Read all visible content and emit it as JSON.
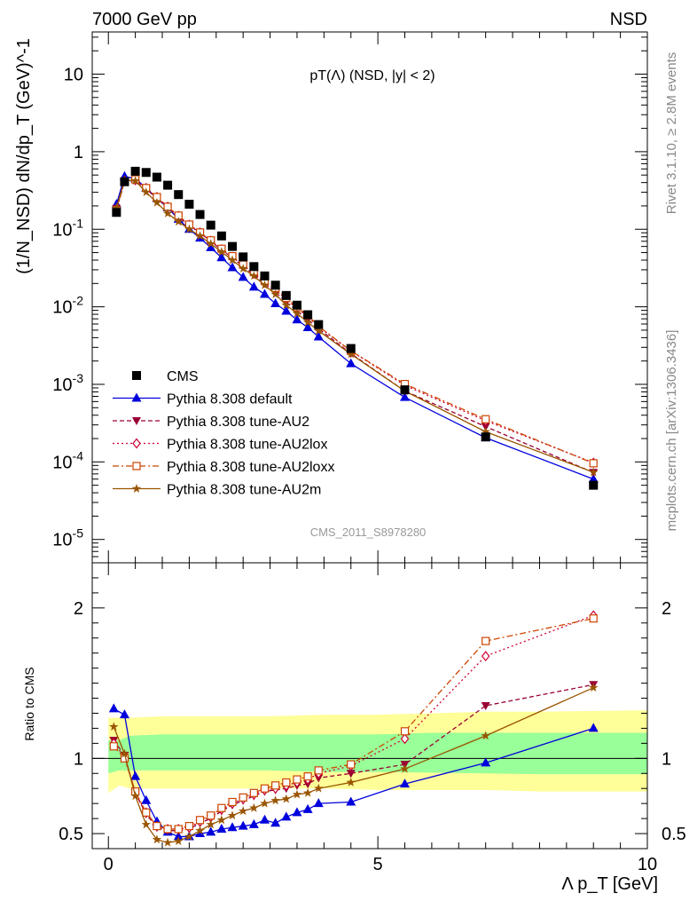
{
  "header": {
    "left": "7000 GeV pp",
    "right": "NSD"
  },
  "side": {
    "rivet": "Rivet 3.1.10, ≥ 2.8M events",
    "mcplots": "mcplots.cern.ch [arXiv:1306.3436]"
  },
  "watermark": "CMS_2011_S8978280",
  "colors": {
    "cms": "#000000",
    "default": "#0000dd",
    "au2": "#990033",
    "au2lox": "#cc0033",
    "au2loxx": "#cc4400",
    "au2m": "#995500",
    "band_inner": "#99ff99",
    "band_outer": "#ffff99"
  },
  "chart_data": [
    {
      "type": "scatter",
      "title": "pT(Λ) (NSD, |y| < 2)",
      "ylabel": "(1/N_NSD) dN/dp_T (GeV)^-1",
      "yscale": "log",
      "xlim": [
        -0.3,
        10
      ],
      "ylim": [
        5e-06,
        35
      ],
      "ytick_labels": [
        "10^-5",
        "10^-4",
        "10^-3",
        "10^-2",
        "10^-1",
        "1",
        "10"
      ],
      "legend": [
        "CMS",
        "Pythia 8.308 default",
        "Pythia 8.308 tune-AU2",
        "Pythia 8.308 tune-AU2lox",
        "Pythia 8.308 tune-AU2loxx",
        "Pythia 8.308 tune-AU2m"
      ],
      "legend_position": "bottom-left",
      "x": [
        0.15,
        0.3,
        0.5,
        0.7,
        0.9,
        1.1,
        1.3,
        1.5,
        1.7,
        1.9,
        2.1,
        2.3,
        2.5,
        2.7,
        2.9,
        3.1,
        3.3,
        3.5,
        3.7,
        3.9,
        4.5,
        5.5,
        7.0,
        9.0
      ],
      "series": [
        {
          "name": "CMS",
          "key": "cms",
          "values": [
            0.165,
            0.41,
            0.56,
            0.54,
            0.47,
            0.37,
            0.28,
            0.21,
            0.155,
            0.113,
            0.082,
            0.06,
            0.044,
            0.033,
            0.025,
            0.019,
            0.014,
            0.0105,
            0.0079,
            0.0059,
            0.0029,
            0.00085,
            0.00021,
            5e-05
          ]
        },
        {
          "name": "Pythia 8.308 default",
          "key": "default",
          "values": [
            0.21,
            0.48,
            0.45,
            0.34,
            0.25,
            0.19,
            0.135,
            0.1,
            0.077,
            0.058,
            0.043,
            0.032,
            0.024,
            0.018,
            0.0145,
            0.011,
            0.0088,
            0.0068,
            0.0054,
            0.0041,
            0.00185,
            0.00068,
            0.000205,
            6e-05
          ]
        },
        {
          "name": "Pythia 8.308 tune-AU2",
          "key": "au2",
          "values": [
            0.185,
            0.42,
            0.43,
            0.33,
            0.25,
            0.19,
            0.145,
            0.112,
            0.09,
            0.07,
            0.054,
            0.043,
            0.033,
            0.026,
            0.02,
            0.0155,
            0.0115,
            0.0088,
            0.0068,
            0.0052,
            0.0025,
            0.00082,
            0.000285,
            7.3e-05
          ]
        },
        {
          "name": "Pythia 8.308 tune-AU2lox",
          "key": "au2lox",
          "values": [
            0.18,
            0.42,
            0.43,
            0.34,
            0.26,
            0.195,
            0.148,
            0.114,
            0.091,
            0.071,
            0.055,
            0.044,
            0.034,
            0.027,
            0.021,
            0.0165,
            0.0125,
            0.0095,
            0.0075,
            0.0055,
            0.0027,
            0.00097,
            0.00034,
            9.75e-05
          ]
        },
        {
          "name": "Pythia 8.308 tune-AU2loxx",
          "key": "au2loxx",
          "values": [
            0.175,
            0.41,
            0.44,
            0.34,
            0.26,
            0.195,
            0.15,
            0.115,
            0.091,
            0.072,
            0.056,
            0.045,
            0.035,
            0.028,
            0.0215,
            0.0175,
            0.013,
            0.0099,
            0.0078,
            0.0056,
            0.0027,
            0.00101,
            0.000355,
            9.6e-05
          ]
        },
        {
          "name": "Pythia 8.308 tune-AU2m",
          "key": "au2m",
          "values": [
            0.19,
            0.43,
            0.42,
            0.3,
            0.22,
            0.16,
            0.125,
            0.1,
            0.082,
            0.065,
            0.051,
            0.04,
            0.031,
            0.025,
            0.019,
            0.0145,
            0.0105,
            0.0082,
            0.0063,
            0.0049,
            0.00245,
            0.00082,
            0.000245,
            7.35e-05
          ]
        }
      ]
    },
    {
      "type": "line",
      "xlabel": "Λ p_T [GeV]",
      "ylabel": "Ratio to CMS",
      "xlim": [
        -0.3,
        10
      ],
      "ylim": [
        0.4,
        2.3
      ],
      "xtick_labels": [
        "0",
        "5",
        "10"
      ],
      "ytick_labels": [
        "0.5",
        "1",
        "2"
      ],
      "x": [
        0.1,
        0.3,
        0.5,
        0.7,
        0.9,
        1.1,
        1.3,
        1.5,
        1.7,
        1.9,
        2.1,
        2.3,
        2.5,
        2.7,
        2.9,
        3.1,
        3.3,
        3.5,
        3.7,
        3.9,
        4.5,
        5.5,
        7.0,
        9.0
      ],
      "bands": {
        "x": [
          0,
          0.2,
          0.4,
          1,
          2,
          3,
          4,
          5,
          6,
          7,
          8,
          10
        ],
        "inner_low": [
          0.9,
          0.92,
          0.92,
          0.92,
          0.92,
          0.92,
          0.91,
          0.91,
          0.905,
          0.9,
          0.895,
          0.895
        ],
        "inner_high": [
          1.12,
          1.12,
          1.15,
          1.16,
          1.16,
          1.16,
          1.16,
          1.16,
          1.17,
          1.17,
          1.17,
          1.17
        ],
        "outer_low": [
          0.77,
          0.82,
          0.8,
          0.8,
          0.8,
          0.8,
          0.8,
          0.79,
          0.79,
          0.79,
          0.78,
          0.78
        ],
        "outer_high": [
          1.27,
          1.27,
          1.27,
          1.28,
          1.28,
          1.28,
          1.29,
          1.29,
          1.3,
          1.31,
          1.31,
          1.32
        ]
      },
      "series": [
        {
          "name": "Pythia 8.308 default",
          "key": "default",
          "values": [
            1.33,
            1.29,
            0.88,
            0.72,
            0.58,
            0.51,
            0.48,
            0.48,
            0.5,
            0.51,
            0.53,
            0.54,
            0.55,
            0.56,
            0.59,
            0.57,
            0.61,
            0.64,
            0.66,
            0.7,
            0.71,
            0.83,
            0.97,
            1.2
          ]
        },
        {
          "name": "Pythia 8.308 tune-AU2",
          "key": "au2",
          "values": [
            1.12,
            1.02,
            0.77,
            0.63,
            0.54,
            0.52,
            0.52,
            0.53,
            0.57,
            0.6,
            0.65,
            0.69,
            0.72,
            0.75,
            0.78,
            0.79,
            0.8,
            0.82,
            0.83,
            0.87,
            0.9,
            0.96,
            1.35,
            1.49
          ]
        },
        {
          "name": "Pythia 8.308 tune-AU2lox",
          "key": "au2lox",
          "values": [
            1.1,
            1.01,
            0.77,
            0.64,
            0.55,
            0.53,
            0.53,
            0.54,
            0.58,
            0.61,
            0.66,
            0.7,
            0.73,
            0.76,
            0.79,
            0.8,
            0.82,
            0.84,
            0.86,
            0.9,
            0.95,
            1.13,
            1.68,
            1.95
          ]
        },
        {
          "name": "Pythia 8.308 tune-AU2loxx",
          "key": "au2loxx",
          "values": [
            1.08,
            1.0,
            0.78,
            0.64,
            0.55,
            0.53,
            0.53,
            0.55,
            0.59,
            0.62,
            0.67,
            0.71,
            0.74,
            0.77,
            0.8,
            0.82,
            0.84,
            0.86,
            0.88,
            0.92,
            0.96,
            1.18,
            1.78,
            1.93
          ]
        },
        {
          "name": "Pythia 8.308 tune-AU2m",
          "key": "au2m",
          "values": [
            1.21,
            1.03,
            0.75,
            0.56,
            0.46,
            0.44,
            0.45,
            0.48,
            0.52,
            0.56,
            0.59,
            0.62,
            0.65,
            0.67,
            0.7,
            0.72,
            0.73,
            0.76,
            0.77,
            0.8,
            0.84,
            0.93,
            1.15,
            1.47
          ]
        }
      ]
    }
  ]
}
